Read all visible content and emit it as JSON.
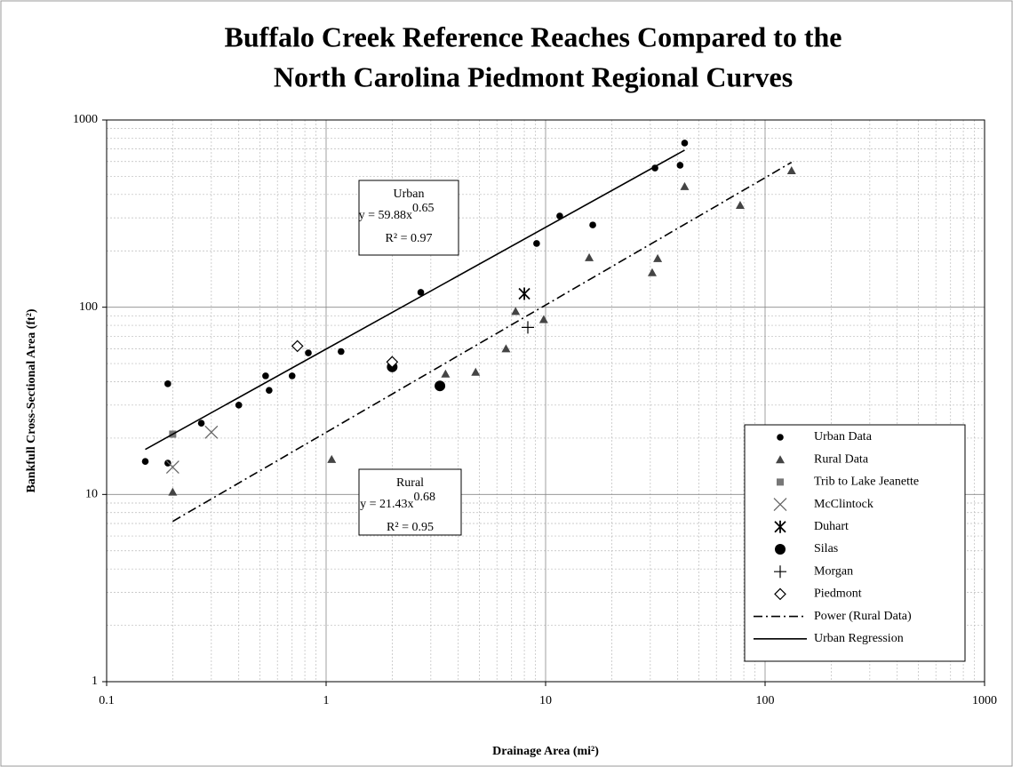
{
  "chart_data": {
    "type": "scatter",
    "title": [
      "Buffalo Creek Reference Reaches Compared to the",
      "North Carolina Piedmont Regional Curves"
    ],
    "xlabel": "Drainage Area (mi²)",
    "ylabel": "Bankfull Cross-Sectional Area (ft²)",
    "xscale": "log",
    "yscale": "log",
    "xlim": [
      0.1,
      1000
    ],
    "ylim": [
      1,
      1000
    ],
    "xticks": [
      0.1,
      1,
      10,
      100,
      1000
    ],
    "yticks": [
      1,
      10,
      100,
      1000
    ],
    "grid": true,
    "legend": "lower right",
    "series": [
      {
        "name": "Urban Data",
        "marker": "dot",
        "color": "#000000",
        "x": [
          0.15,
          0.19,
          0.19,
          0.27,
          0.4,
          0.53,
          0.55,
          0.7,
          0.83,
          1.17,
          2.7,
          9.1,
          11.6,
          16.4,
          31.5,
          41,
          43
        ],
        "values": [
          15,
          39,
          14.7,
          24,
          30,
          43,
          36,
          43,
          57,
          58,
          120,
          219,
          307,
          275,
          554,
          573,
          753
        ]
      },
      {
        "name": "Rural Data",
        "marker": "triangle",
        "color": "#444444",
        "x": [
          0.2,
          1.06,
          3.5,
          4.8,
          6.6,
          7.3,
          9.8,
          15.8,
          30.6,
          32.4,
          43,
          77,
          132
        ],
        "values": [
          10.3,
          15.4,
          44,
          45,
          60,
          95,
          86,
          184,
          153,
          182,
          441,
          350,
          536
        ]
      },
      {
        "name": "Trib to Lake Jeanette",
        "marker": "square",
        "color": "#777777",
        "x": [
          0.2
        ],
        "values": [
          21
        ]
      },
      {
        "name": "McClintock",
        "marker": "cross",
        "color": "#666666",
        "x": [
          0.2,
          0.3
        ],
        "values": [
          14,
          21.5
        ]
      },
      {
        "name": "Duhart",
        "marker": "asterisk",
        "color": "#000000",
        "x": [
          8
        ],
        "values": [
          118
        ]
      },
      {
        "name": "Silas",
        "marker": "bigdot",
        "color": "#000000",
        "x": [
          2,
          3.3
        ],
        "values": [
          48,
          38
        ]
      },
      {
        "name": "Morgan",
        "marker": "plus",
        "color": "#000000",
        "x": [
          8.3
        ],
        "values": [
          78
        ]
      },
      {
        "name": "Piedmont",
        "marker": "diamond",
        "color": "#000000",
        "x": [
          0.74,
          2
        ],
        "values": [
          62,
          51
        ]
      },
      {
        "name": "Power (Rural Data)",
        "line": "dashdot",
        "color": "#000000",
        "x": [
          0.2,
          132
        ],
        "values": [
          7.18,
          594
        ]
      },
      {
        "name": "Urban Regression",
        "line": "solid",
        "color": "#000000",
        "x": [
          0.15,
          43
        ],
        "values": [
          17.4,
          690
        ]
      }
    ],
    "annotations": [
      {
        "title": "Urban",
        "equation": "y = 59.88x",
        "exponent": "0.65",
        "r_squared": "R² = 0.97"
      },
      {
        "title": "Rural",
        "equation": "y = 21.43x",
        "exponent": "0.68",
        "r_squared": "R² = 0.95"
      }
    ]
  }
}
